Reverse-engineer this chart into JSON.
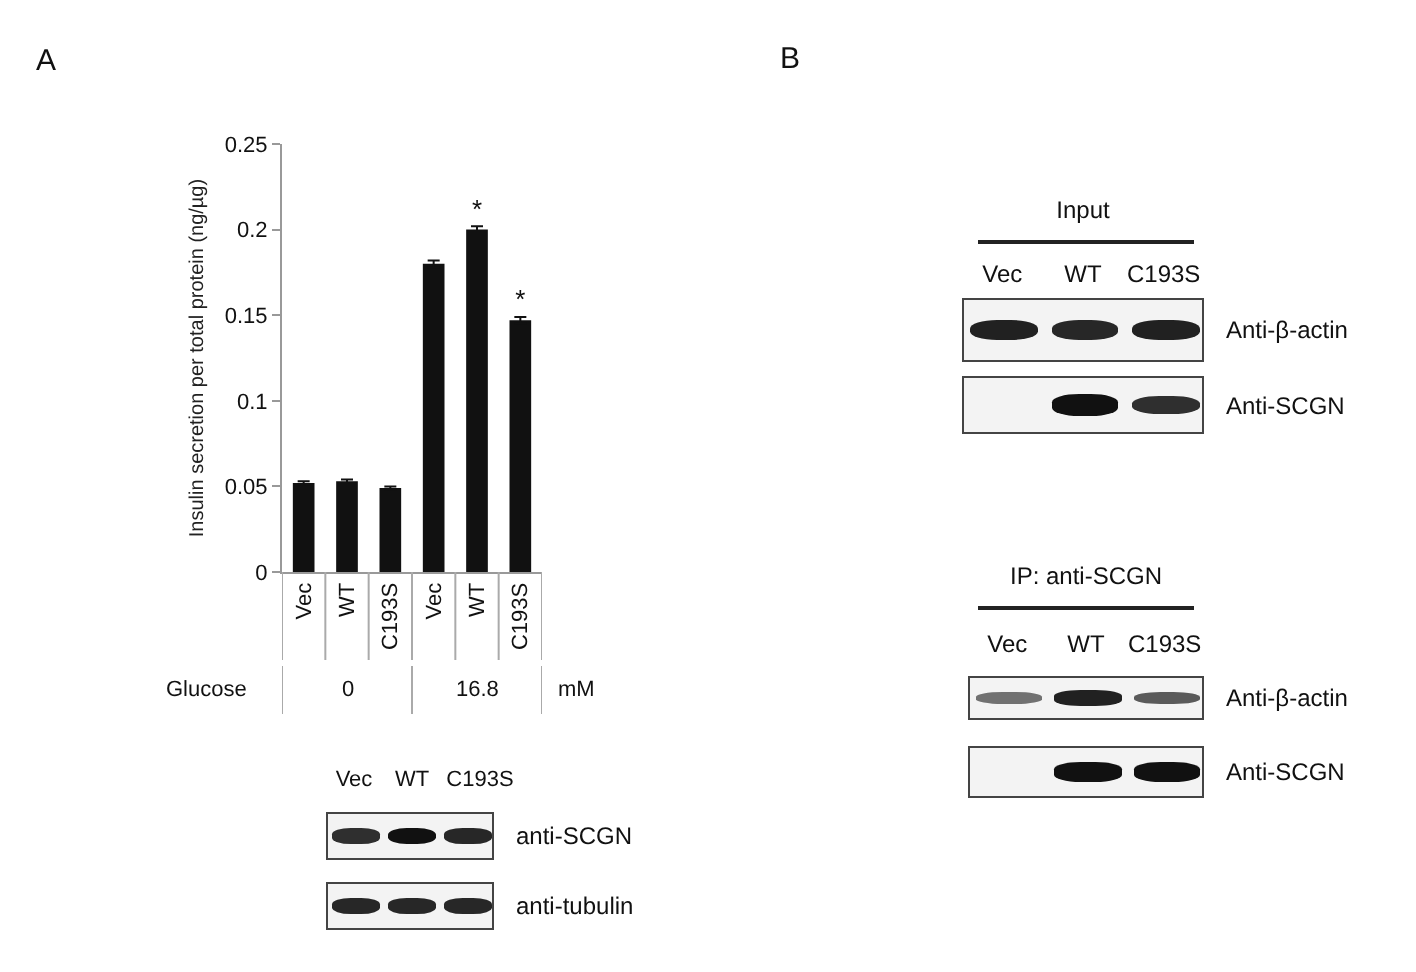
{
  "chart_data": [
    {
      "type": "bar",
      "ylabel": "Insulin secretion per total protein (ng/µg)",
      "categories": [
        "Vec",
        "WT",
        "C193S",
        "Vec",
        "WT",
        "C193S"
      ],
      "values": [
        0.052,
        0.053,
        0.049,
        0.18,
        0.2,
        0.147
      ],
      "errors": [
        0.001,
        0.001,
        0.001,
        0.002,
        0.002,
        0.002
      ],
      "color": "#111111",
      "ylim": [
        0,
        0.25
      ],
      "yticks": [
        0,
        0.05,
        0.1,
        0.15,
        0.2,
        0.25
      ],
      "value_labels": [
        null,
        null,
        null,
        null,
        "*",
        "*"
      ],
      "annotations": [
        "A",
        "Glucose",
        "0",
        "16.8",
        "mM"
      ]
    },
    {
      "type": "other",
      "annotations": [
        "Vec",
        "WT",
        "C193S",
        "anti-SCGN",
        "anti-tubulin"
      ]
    },
    {
      "type": "other",
      "title": "Input",
      "annotations": [
        "B",
        "Vec",
        "WT",
        "C193S",
        "Anti-β-actin",
        "Anti-SCGN"
      ]
    },
    {
      "type": "other",
      "title": "IP: anti-SCGN",
      "annotations": [
        "Vec",
        "WT",
        "C193S",
        "Anti-β-actin",
        "Anti-SCGN"
      ]
    }
  ]
}
